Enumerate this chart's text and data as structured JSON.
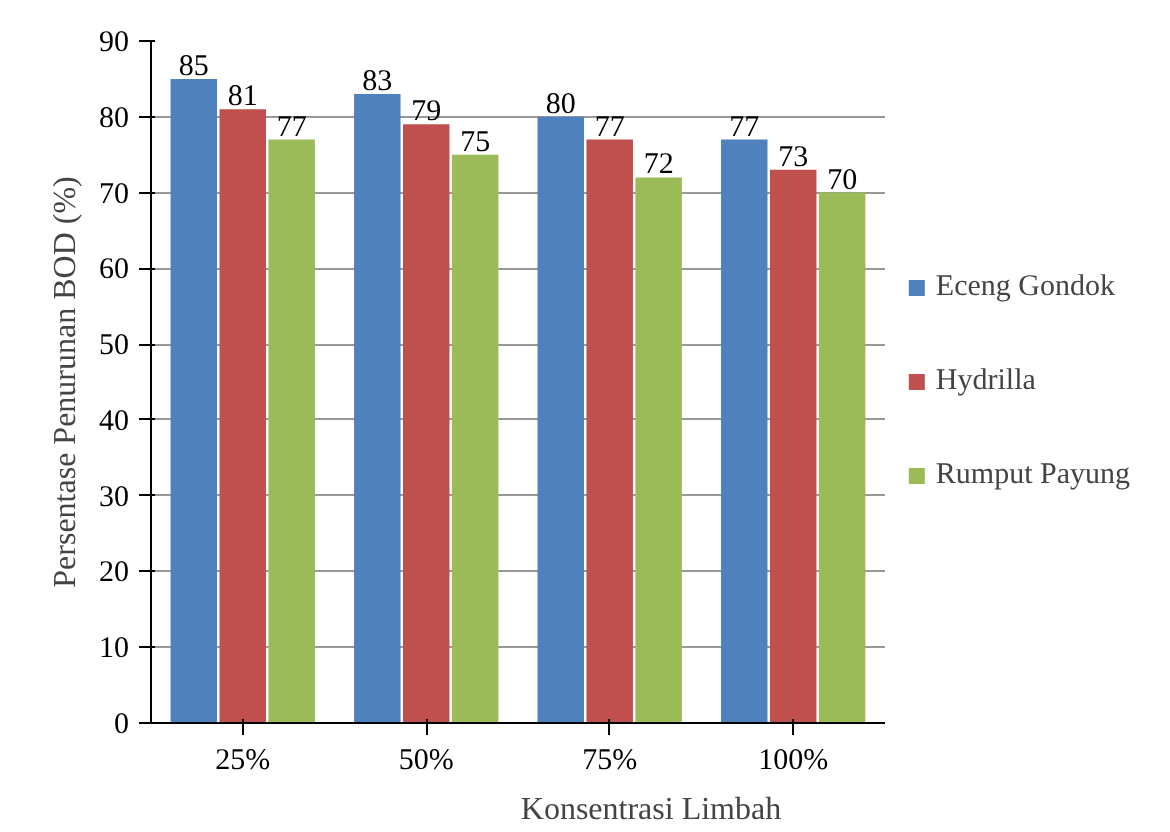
{
  "chart_data": {
    "type": "bar",
    "xlabel": "Konsentrasi Limbah",
    "ylabel": "Persentase Penurunan BOD (%)",
    "categories": [
      "25%",
      "50%",
      "75%",
      "100%"
    ],
    "series": [
      {
        "name": "Eceng Gondok",
        "color": "#4f81bd",
        "values": [
          85,
          83,
          80,
          77
        ]
      },
      {
        "name": "Hydrilla",
        "color": "#c0504d",
        "values": [
          81,
          79,
          77,
          73
        ]
      },
      {
        "name": "Rumput Payung",
        "color": "#9bbb59",
        "values": [
          77,
          75,
          72,
          70
        ]
      }
    ],
    "ylim": [
      0,
      90
    ],
    "yticks": [
      0,
      10,
      20,
      30,
      40,
      50,
      60,
      70,
      80,
      90
    ],
    "grid": "y",
    "legend": "right",
    "data_labels": true
  }
}
